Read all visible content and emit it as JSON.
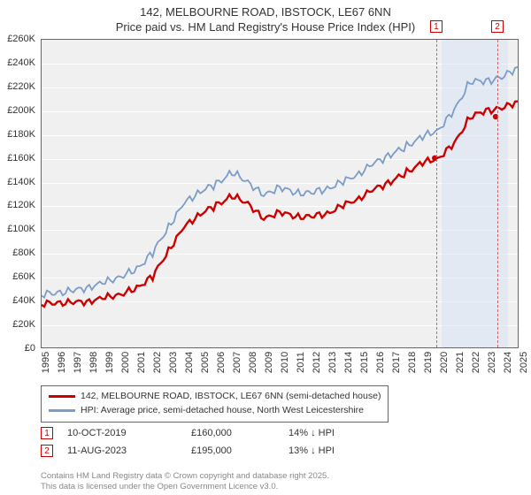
{
  "title_line1": "142, MELBOURNE ROAD, IBSTOCK, LE67 6NN",
  "title_line2": "Price paid vs. HM Land Registry's House Price Index (HPI)",
  "chart": {
    "type": "line",
    "background_color": "#f0f0f0",
    "grid_color": "#ffffff",
    "border_color": "#666666",
    "x_start_year": 1995,
    "x_end_year": 2025,
    "x_ticks": [
      1995,
      1996,
      1997,
      1998,
      1999,
      2000,
      2001,
      2002,
      2003,
      2004,
      2005,
      2006,
      2007,
      2008,
      2009,
      2010,
      2011,
      2012,
      2013,
      2014,
      2015,
      2016,
      2017,
      2018,
      2019,
      2020,
      2021,
      2022,
      2023,
      2024,
      2025
    ],
    "ylim": [
      0,
      260000
    ],
    "y_ticks": [
      0,
      20000,
      40000,
      60000,
      80000,
      100000,
      120000,
      140000,
      160000,
      180000,
      200000,
      220000,
      240000,
      260000
    ],
    "y_tick_labels": [
      "£0",
      "£20K",
      "£40K",
      "£60K",
      "£80K",
      "£100K",
      "£120K",
      "£140K",
      "£160K",
      "£180K",
      "£200K",
      "£220K",
      "£240K",
      "£260K"
    ],
    "shaded_band": {
      "from_year": 2020.1,
      "to_year": 2024.3,
      "color": "#d8e4f5"
    },
    "series": [
      {
        "name": "price_paid",
        "color": "#cc0000",
        "width": 2.4,
        "yearly_points": [
          [
            1995,
            37000
          ],
          [
            1996,
            37500
          ],
          [
            1997,
            38000
          ],
          [
            1998,
            39000
          ],
          [
            1999,
            42000
          ],
          [
            2000,
            45000
          ],
          [
            2001,
            50000
          ],
          [
            2002,
            60000
          ],
          [
            2003,
            82000
          ],
          [
            2004,
            102000
          ],
          [
            2005,
            113000
          ],
          [
            2006,
            120000
          ],
          [
            2007,
            128000
          ],
          [
            2008,
            122000
          ],
          [
            2009,
            108000
          ],
          [
            2010,
            115000
          ],
          [
            2011,
            110000
          ],
          [
            2012,
            111000
          ],
          [
            2013,
            113000
          ],
          [
            2014,
            120000
          ],
          [
            2015,
            126000
          ],
          [
            2016,
            134000
          ],
          [
            2017,
            140000
          ],
          [
            2018,
            148000
          ],
          [
            2019,
            156000
          ],
          [
            2020,
            160000
          ],
          [
            2021,
            172000
          ],
          [
            2022,
            195000
          ],
          [
            2023,
            200000
          ],
          [
            2024,
            202000
          ],
          [
            2025,
            208000
          ]
        ]
      },
      {
        "name": "hpi",
        "color": "#7a9cc6",
        "width": 1.8,
        "yearly_points": [
          [
            1995,
            45000
          ],
          [
            1996,
            46000
          ],
          [
            1997,
            48000
          ],
          [
            1998,
            51000
          ],
          [
            1999,
            55000
          ],
          [
            2000,
            60000
          ],
          [
            2001,
            66000
          ],
          [
            2002,
            80000
          ],
          [
            2003,
            102000
          ],
          [
            2004,
            122000
          ],
          [
            2005,
            132000
          ],
          [
            2006,
            138000
          ],
          [
            2007,
            148000
          ],
          [
            2008,
            140000
          ],
          [
            2009,
            128000
          ],
          [
            2010,
            136000
          ],
          [
            2011,
            130000
          ],
          [
            2012,
            131000
          ],
          [
            2013,
            134000
          ],
          [
            2014,
            140000
          ],
          [
            2015,
            147000
          ],
          [
            2016,
            156000
          ],
          [
            2017,
            163000
          ],
          [
            2018,
            170000
          ],
          [
            2019,
            178000
          ],
          [
            2020,
            184000
          ],
          [
            2021,
            200000
          ],
          [
            2022,
            225000
          ],
          [
            2023,
            225000
          ],
          [
            2024,
            228000
          ],
          [
            2025,
            237000
          ]
        ]
      }
    ],
    "sale_markers": [
      {
        "label": "1",
        "year": 2019.77,
        "price": 160000
      },
      {
        "label": "2",
        "year": 2023.61,
        "price": 195000
      }
    ],
    "marker_dot_color": "#cc0000",
    "marker_dot_radius": 3.2
  },
  "legend": {
    "items": [
      {
        "color": "#cc0000",
        "text": "142, MELBOURNE ROAD, IBSTOCK, LE67 6NN (semi-detached house)"
      },
      {
        "color": "#7a9cc6",
        "text": "HPI: Average price, semi-detached house, North West Leicestershire"
      }
    ]
  },
  "sales": [
    {
      "label": "1",
      "date": "10-OCT-2019",
      "price": "£160,000",
      "delta": "14% ↓ HPI"
    },
    {
      "label": "2",
      "date": "11-AUG-2023",
      "price": "£195,000",
      "delta": "13% ↓ HPI"
    }
  ],
  "attribution_line1": "Contains HM Land Registry data © Crown copyright and database right 2025.",
  "attribution_line2": "This data is licensed under the Open Government Licence v3.0."
}
